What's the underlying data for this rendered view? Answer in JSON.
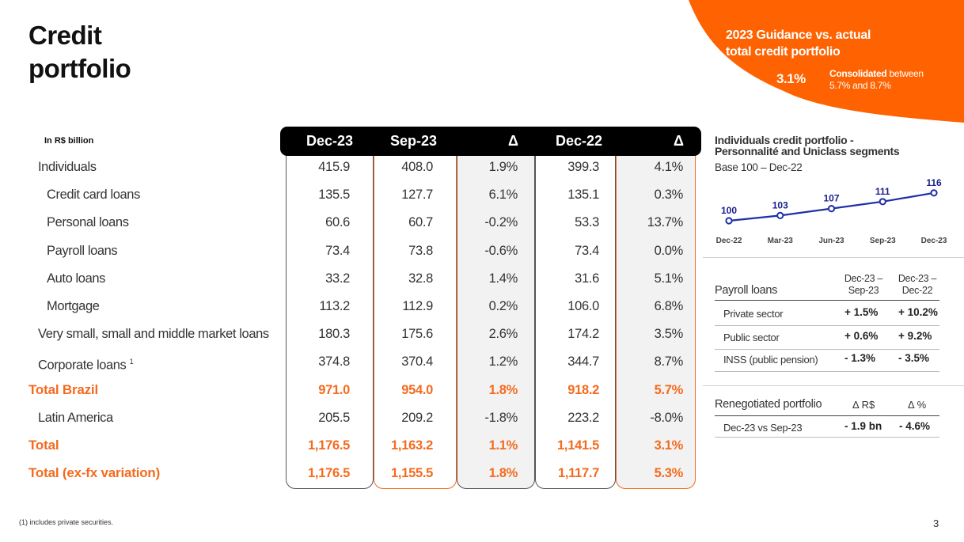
{
  "title_line1": "Credit",
  "title_line2": "portfolio",
  "guidance": {
    "heading_line1": "2023 Guidance  vs. actual",
    "heading_line2": "total credit portfolio",
    "value": "3.1%",
    "note_bold": "Consolidated",
    "note_rest": " between",
    "note_line2": "5.7% and 8.7%"
  },
  "table": {
    "units": "In R$ billion",
    "columns": [
      "Dec-23",
      "Sep-23",
      "Δ",
      "Dec-22",
      "Δ"
    ],
    "rows": [
      {
        "label": "Individuals",
        "values": [
          "415.9",
          "408.0",
          "1.9%",
          "399.3",
          "4.1%"
        ]
      },
      {
        "label": "Credit card loans",
        "values": [
          "135.5",
          "127.7",
          "6.1%",
          "135.1",
          "0.3%"
        ]
      },
      {
        "label": "Personal loans",
        "values": [
          "60.6",
          "60.7",
          "-0.2%",
          "53.3",
          "13.7%"
        ]
      },
      {
        "label": "Payroll loans",
        "values": [
          "73.4",
          "73.8",
          "-0.6%",
          "73.4",
          "0.0%"
        ]
      },
      {
        "label": "Auto loans",
        "values": [
          "33.2",
          "32.8",
          "1.4%",
          "31.6",
          "5.1%"
        ]
      },
      {
        "label": "Mortgage",
        "values": [
          "113.2",
          "112.9",
          "0.2%",
          "106.0",
          "6.8%"
        ]
      },
      {
        "label": "Very small, small and middle market loans",
        "values": [
          "180.3",
          "175.6",
          "2.6%",
          "174.2",
          "3.5%"
        ]
      },
      {
        "label": "Corporate loans",
        "sup": "1",
        "values": [
          "374.8",
          "370.4",
          "1.2%",
          "344.7",
          "8.7%"
        ]
      },
      {
        "label": "Total Brazil",
        "values": [
          "971.0",
          "954.0",
          "1.8%",
          "918.2",
          "5.7%"
        ]
      },
      {
        "label": "Latin America",
        "values": [
          "205.5",
          "209.2",
          "-1.8%",
          "223.2",
          "-8.0%"
        ]
      },
      {
        "label": "Total",
        "values": [
          "1,176.5",
          "1,163.2",
          "1.1%",
          "1,141.5",
          "3.1%"
        ]
      },
      {
        "label": "Total (ex-fx variation)",
        "values": [
          "1,176.5",
          "1,155.5",
          "1.8%",
          "1,117.7",
          "5.3%"
        ]
      }
    ]
  },
  "chart_data": {
    "type": "line",
    "title": "Individuals credit portfolio - Personnalité and Uniclass segments",
    "title_line1": "Individuals credit portfolio  -",
    "title_line2": "Personnalité and Uniclass segments",
    "subtitle": "Base 100 – Dec-22",
    "categories": [
      "Dec-22",
      "Mar-23",
      "Jun-23",
      "Sep-23",
      "Dec-23"
    ],
    "values": [
      100,
      103,
      107,
      111,
      116
    ],
    "ylim": [
      95,
      120
    ],
    "color": "#1f2fa8"
  },
  "payroll": {
    "title": "Payroll loans",
    "col1_line1": "Dec-23 –",
    "col1_line2": "Sep-23",
    "col2_line1": "Dec-23 –",
    "col2_line2": "Dec-22",
    "rows": [
      {
        "label": "Private sector",
        "v1": "+  1.5%",
        "v2": "+ 10.2%"
      },
      {
        "label": "Public sector",
        "v1": "+  0.6%",
        "v2": "+ 9.2%"
      },
      {
        "label": "INSS (public pension)",
        "v1": "-  1.3%",
        "v2": "-  3.5%"
      }
    ]
  },
  "renegotiated": {
    "title": "Renegotiated portfolio",
    "col1": "Δ R$",
    "col2": "Δ %",
    "row_label": "Dec-23 vs Sep-23",
    "v1": "-  1.9 bn",
    "v2": "-  4.6%"
  },
  "footnote": "(1) includes private securities.",
  "page_number": "3",
  "colors": {
    "orange": "#f46b1f",
    "navy": "#1f2fa8",
    "black": "#000000"
  }
}
